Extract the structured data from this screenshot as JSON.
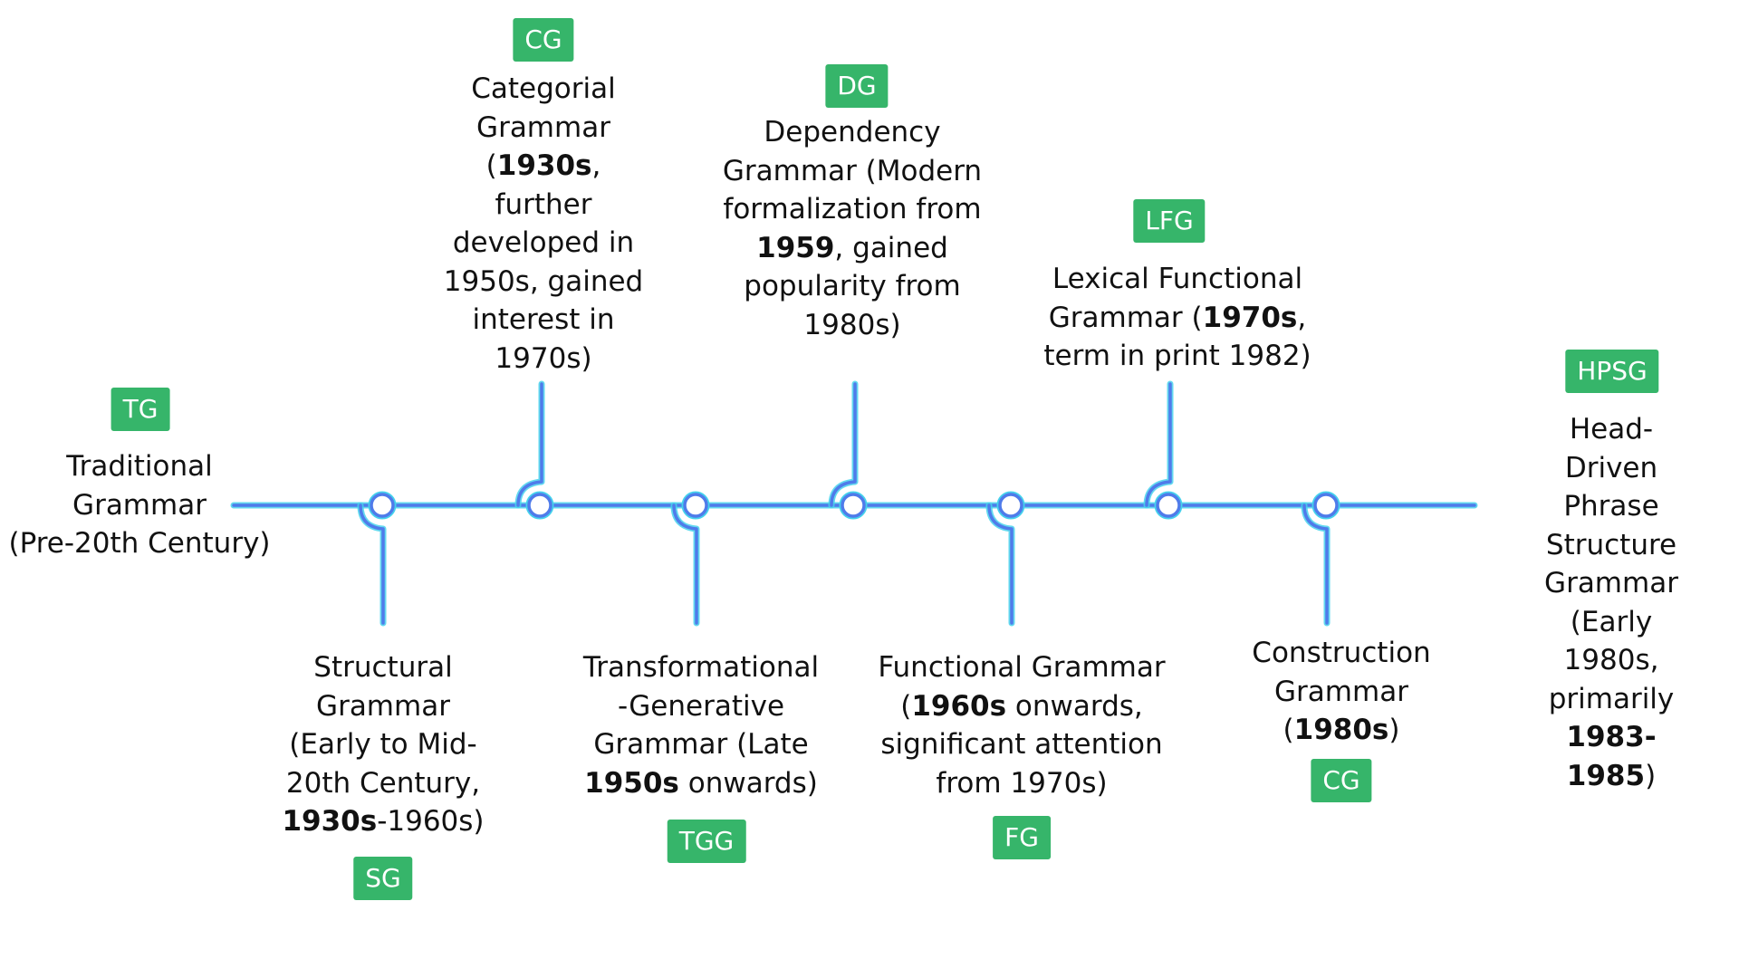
{
  "accent_color": "#36b56a",
  "line_colors": {
    "primary": "#4f7bea",
    "glow": "#46d2ec"
  },
  "events": [
    {
      "id": "tg",
      "abbr": "TG",
      "position": "above",
      "segments": [
        {
          "text": "Traditional"
        },
        {
          "text": "Grammar"
        },
        {
          "text": "(Pre-20th Century)"
        }
      ]
    },
    {
      "id": "sg",
      "abbr": "SG",
      "position": "below",
      "segments": [
        {
          "text": "Structural"
        },
        {
          "text": "Grammar"
        },
        {
          "text": "(Early to Mid-"
        },
        {
          "text": "20th Century,"
        },
        {
          "text": "1930s",
          "bold": true,
          "inline": true
        },
        {
          "text": "-1960s)",
          "inline": true
        }
      ]
    },
    {
      "id": "cg1",
      "abbr": "CG",
      "position": "above",
      "segments": [
        {
          "text": "Categorial"
        },
        {
          "text": "Grammar"
        },
        {
          "text": "(",
          "inline": false
        },
        {
          "text": "1930s",
          "bold": true,
          "inline": true
        },
        {
          "text": ",",
          "inline": true
        },
        {
          "text": "further"
        },
        {
          "text": "developed in"
        },
        {
          "text": "1950s, gained"
        },
        {
          "text": "interest in"
        },
        {
          "text": "1970s)"
        }
      ]
    },
    {
      "id": "tgg",
      "abbr": "TGG",
      "position": "below",
      "segments": [
        {
          "text": "Transformational"
        },
        {
          "text": "-Generative"
        },
        {
          "text": "Grammar (Late"
        },
        {
          "text": "1950s",
          "bold": true
        },
        {
          "text": " onwards)",
          "inline": true
        }
      ]
    },
    {
      "id": "dg",
      "abbr": "DG",
      "position": "above",
      "segments": [
        {
          "text": "Dependency"
        },
        {
          "text": "Grammar (Modern"
        },
        {
          "text": "formalization from"
        },
        {
          "text": "1959",
          "bold": true
        },
        {
          "text": ", gained",
          "inline": true
        },
        {
          "text": "popularity from"
        },
        {
          "text": "1980s)"
        }
      ]
    },
    {
      "id": "fg",
      "abbr": "FG",
      "position": "below",
      "segments": [
        {
          "text": "Functional Grammar"
        },
        {
          "text": "("
        },
        {
          "text": "1960s",
          "bold": true,
          "inline": true
        },
        {
          "text": " onwards,",
          "inline": true
        },
        {
          "text": "significant attention"
        },
        {
          "text": "from 1970s)"
        }
      ]
    },
    {
      "id": "lfg",
      "abbr": "LFG",
      "position": "above",
      "segments": [
        {
          "text": "Lexical Functional"
        },
        {
          "text": "Grammar ("
        },
        {
          "text": "1970s",
          "bold": true,
          "inline": true
        },
        {
          "text": ",",
          "inline": true
        },
        {
          "text": "term in print 1982)"
        }
      ]
    },
    {
      "id": "cg2",
      "abbr": "CG",
      "position": "below",
      "segments": [
        {
          "text": "Construction"
        },
        {
          "text": "Grammar"
        },
        {
          "text": "("
        },
        {
          "text": "1980s",
          "bold": true,
          "inline": true
        },
        {
          "text": ")",
          "inline": true
        }
      ]
    },
    {
      "id": "hpsg",
      "abbr": "HPSG",
      "position": "above",
      "segments": [
        {
          "text": "Head-Driven"
        },
        {
          "text": "Phrase Structure"
        },
        {
          "text": "Grammar (Early"
        },
        {
          "text": "1980s, primarily"
        },
        {
          "text": "1983-1985",
          "bold": true
        },
        {
          "text": ")",
          "inline": true
        }
      ]
    }
  ]
}
